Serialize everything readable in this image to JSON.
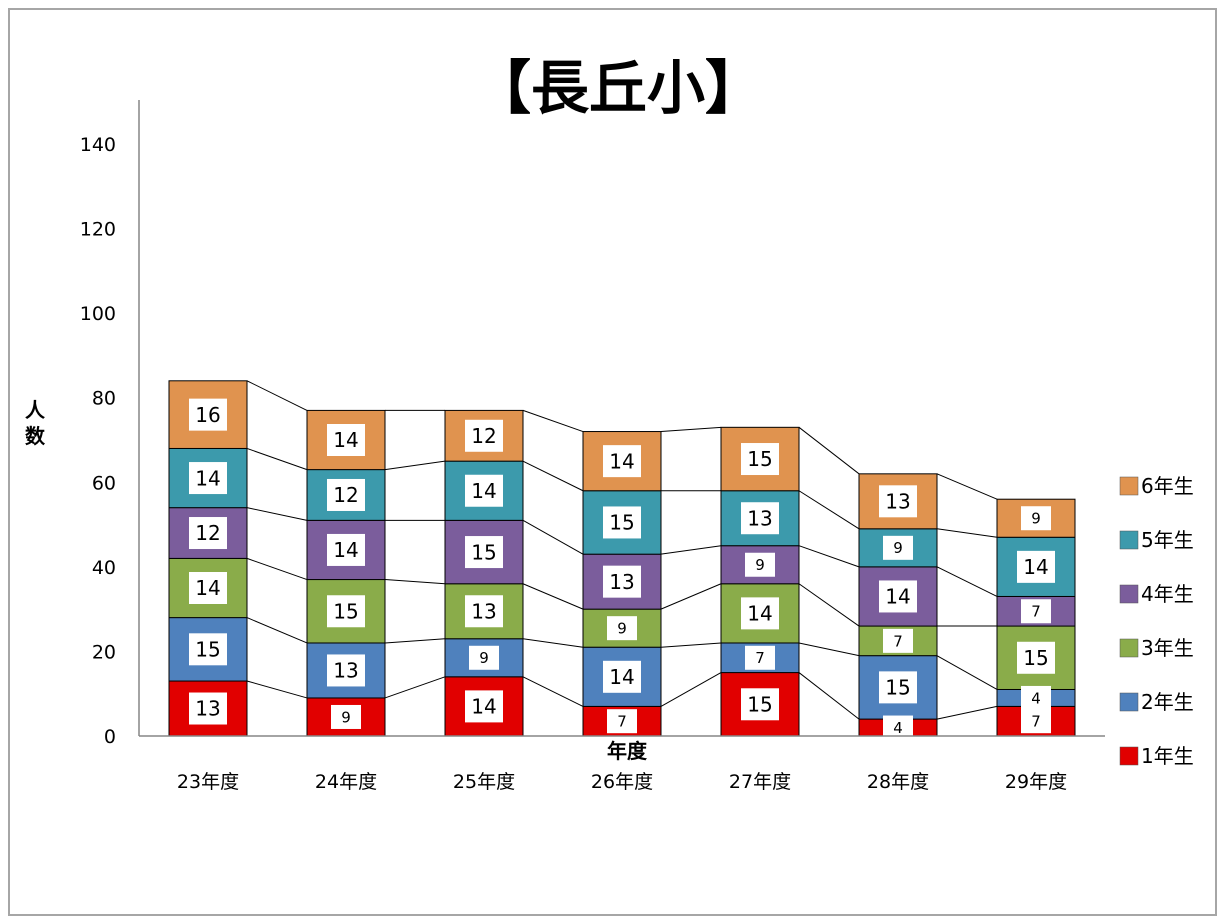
{
  "chart_data": {
    "type": "bar",
    "stacked": true,
    "title": "【長丘小】",
    "xlabel": "年度",
    "ylabel": "人数",
    "ylim": [
      0,
      140
    ],
    "yticks": [
      0,
      20,
      40,
      60,
      80,
      100,
      120,
      140
    ],
    "categories": [
      "23年度",
      "24年度",
      "25年度",
      "26年度",
      "27年度",
      "28年度",
      "29年度"
    ],
    "series": [
      {
        "name": "1年生",
        "color": "#e10000",
        "values": [
          13,
          9,
          14,
          7,
          15,
          4,
          7
        ]
      },
      {
        "name": "2年生",
        "color": "#4f81bd",
        "values": [
          15,
          13,
          9,
          14,
          7,
          15,
          4
        ]
      },
      {
        "name": "3年生",
        "color": "#8aac4a",
        "values": [
          14,
          15,
          13,
          9,
          14,
          7,
          15
        ]
      },
      {
        "name": "4年生",
        "color": "#7b5d9c",
        "values": [
          12,
          14,
          15,
          13,
          9,
          14,
          7
        ]
      },
      {
        "name": "5年生",
        "color": "#3c9aac",
        "values": [
          14,
          12,
          14,
          15,
          13,
          9,
          14
        ]
      },
      {
        "name": "6年生",
        "color": "#e0934f",
        "values": [
          16,
          14,
          12,
          14,
          15,
          13,
          9
        ]
      }
    ],
    "series_lines": true,
    "grid": false,
    "legend_position": "right"
  }
}
